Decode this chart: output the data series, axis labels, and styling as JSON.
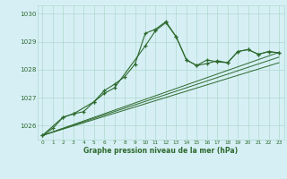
{
  "title": "Graphe pression niveau de la mer (hPa)",
  "bg_color": "#d6eff5",
  "grid_color": "#b0d9cc",
  "line_color": "#2d6a2d",
  "x_ticks": [
    0,
    1,
    2,
    3,
    4,
    5,
    6,
    7,
    8,
    9,
    10,
    11,
    12,
    13,
    14,
    15,
    16,
    17,
    18,
    19,
    20,
    21,
    22,
    23
  ],
  "ylim": [
    1025.5,
    1030.3
  ],
  "yticks": [
    1026,
    1027,
    1028,
    1029,
    1030
  ],
  "series1_x": [
    0,
    1,
    2,
    3,
    4,
    5,
    6,
    7,
    8,
    9,
    10,
    11,
    12,
    13,
    14,
    15,
    16,
    17,
    18,
    19,
    20,
    21,
    22,
    23
  ],
  "series1_y": [
    1025.65,
    1025.9,
    1026.3,
    1026.42,
    1026.5,
    1026.85,
    1027.25,
    1027.48,
    1027.75,
    1028.2,
    1029.3,
    1029.45,
    1029.72,
    1029.18,
    1028.35,
    1028.15,
    1028.22,
    1028.32,
    1028.25,
    1028.65,
    1028.72,
    1028.55,
    1028.65,
    1028.6
  ],
  "series2_x": [
    0,
    2,
    3,
    5,
    6,
    7,
    10,
    11,
    12,
    13,
    14,
    15,
    16,
    17,
    18,
    19,
    20,
    21,
    22,
    23
  ],
  "series2_y": [
    1025.65,
    1026.3,
    1026.42,
    1026.85,
    1027.15,
    1027.35,
    1028.85,
    1029.4,
    1029.68,
    1029.18,
    1028.35,
    1028.15,
    1028.35,
    1028.28,
    1028.25,
    1028.65,
    1028.72,
    1028.55,
    1028.65,
    1028.6
  ],
  "line1_x": [
    0,
    23
  ],
  "line1_y": [
    1025.65,
    1028.45
  ],
  "line2_x": [
    0,
    23
  ],
  "line2_y": [
    1025.65,
    1028.62
  ],
  "line3_x": [
    0,
    23
  ],
  "line3_y": [
    1025.65,
    1028.25
  ]
}
